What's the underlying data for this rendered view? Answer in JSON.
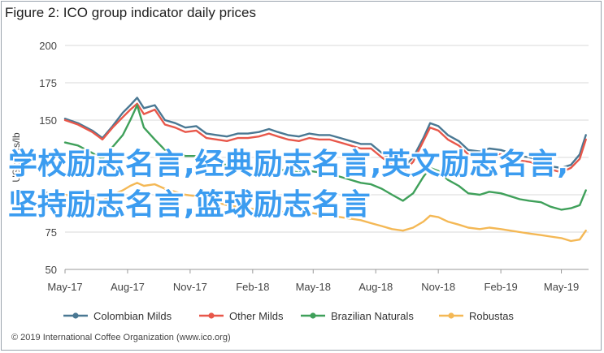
{
  "header": {
    "title": "Figure 2: ICO group indicator daily prices"
  },
  "overlay": {
    "text": "学校励志名言,经典励志名言,英文励志名言,坚持励志名言,篮球励志名言"
  },
  "footer": {
    "copyright": "© 2019 International Coffee Organization (www.ico.org)"
  },
  "chart_data": {
    "type": "line",
    "title": "Figure 2: ICO group indicator daily prices",
    "ylabel": "US cents/lb",
    "xlabel": "",
    "ylim": [
      50,
      200
    ],
    "yticks": [
      50,
      75,
      100,
      125,
      150,
      175,
      200
    ],
    "xlim": [
      "2017-05-01",
      "2019-06-10"
    ],
    "xticks": [
      "2017-05-01",
      "2017-08-01",
      "2017-11-01",
      "2018-02-01",
      "2018-05-01",
      "2018-08-01",
      "2018-11-01",
      "2019-02-01",
      "2019-05-01"
    ],
    "xtick_labels": [
      "May-17",
      "Aug-17",
      "Nov-17",
      "Feb-18",
      "May-18",
      "Aug-18",
      "Nov-18",
      "Feb-19",
      "May-19"
    ],
    "grid": true,
    "legend_position": "bottom",
    "series": [
      {
        "name": "Colombian Milds",
        "color": "#4a7893",
        "points": [
          [
            "2017-05-01",
            151
          ],
          [
            "2017-05-20",
            148
          ],
          [
            "2017-06-10",
            143
          ],
          [
            "2017-06-25",
            138
          ],
          [
            "2017-07-10",
            146
          ],
          [
            "2017-07-25",
            155
          ],
          [
            "2017-08-05",
            160
          ],
          [
            "2017-08-15",
            165
          ],
          [
            "2017-08-25",
            158
          ],
          [
            "2017-09-10",
            160
          ],
          [
            "2017-09-25",
            150
          ],
          [
            "2017-10-10",
            148
          ],
          [
            "2017-10-25",
            145
          ],
          [
            "2017-11-10",
            146
          ],
          [
            "2017-11-25",
            141
          ],
          [
            "2017-12-10",
            140
          ],
          [
            "2017-12-25",
            139
          ],
          [
            "2018-01-10",
            141
          ],
          [
            "2018-01-25",
            141
          ],
          [
            "2018-02-10",
            142
          ],
          [
            "2018-02-25",
            144
          ],
          [
            "2018-03-10",
            142
          ],
          [
            "2018-03-25",
            140
          ],
          [
            "2018-04-10",
            139
          ],
          [
            "2018-04-25",
            141
          ],
          [
            "2018-05-10",
            140
          ],
          [
            "2018-05-25",
            140
          ],
          [
            "2018-06-10",
            138
          ],
          [
            "2018-06-25",
            136
          ],
          [
            "2018-07-10",
            134
          ],
          [
            "2018-07-25",
            134
          ],
          [
            "2018-08-10",
            128
          ],
          [
            "2018-08-25",
            123
          ],
          [
            "2018-09-10",
            118
          ],
          [
            "2018-09-25",
            125
          ],
          [
            "2018-10-10",
            138
          ],
          [
            "2018-10-20",
            148
          ],
          [
            "2018-11-01",
            146
          ],
          [
            "2018-11-15",
            140
          ],
          [
            "2018-12-01",
            136
          ],
          [
            "2018-12-15",
            130
          ],
          [
            "2019-01-01",
            129
          ],
          [
            "2019-01-15",
            131
          ],
          [
            "2019-02-01",
            130
          ],
          [
            "2019-02-15",
            128
          ],
          [
            "2019-03-01",
            126
          ],
          [
            "2019-03-15",
            125
          ],
          [
            "2019-04-01",
            123
          ],
          [
            "2019-04-15",
            119
          ],
          [
            "2019-05-01",
            118
          ],
          [
            "2019-05-15",
            120
          ],
          [
            "2019-05-28",
            127
          ],
          [
            "2019-06-06",
            140
          ]
        ]
      },
      {
        "name": "Other Milds",
        "color": "#e8574a",
        "points": [
          [
            "2017-05-01",
            150
          ],
          [
            "2017-05-20",
            147
          ],
          [
            "2017-06-10",
            142
          ],
          [
            "2017-06-25",
            137
          ],
          [
            "2017-07-10",
            145
          ],
          [
            "2017-07-25",
            152
          ],
          [
            "2017-08-05",
            157
          ],
          [
            "2017-08-15",
            161
          ],
          [
            "2017-08-25",
            154
          ],
          [
            "2017-09-10",
            157
          ],
          [
            "2017-09-25",
            147
          ],
          [
            "2017-10-10",
            145
          ],
          [
            "2017-10-25",
            142
          ],
          [
            "2017-11-10",
            143
          ],
          [
            "2017-11-25",
            138
          ],
          [
            "2017-12-10",
            137
          ],
          [
            "2017-12-25",
            136
          ],
          [
            "2018-01-10",
            138
          ],
          [
            "2018-01-25",
            138
          ],
          [
            "2018-02-10",
            139
          ],
          [
            "2018-02-25",
            141
          ],
          [
            "2018-03-10",
            139
          ],
          [
            "2018-03-25",
            137
          ],
          [
            "2018-04-10",
            136
          ],
          [
            "2018-04-25",
            138
          ],
          [
            "2018-05-10",
            137
          ],
          [
            "2018-05-25",
            137
          ],
          [
            "2018-06-10",
            135
          ],
          [
            "2018-06-25",
            133
          ],
          [
            "2018-07-10",
            131
          ],
          [
            "2018-07-25",
            131
          ],
          [
            "2018-08-10",
            125
          ],
          [
            "2018-08-25",
            120
          ],
          [
            "2018-09-10",
            115
          ],
          [
            "2018-09-25",
            122
          ],
          [
            "2018-10-10",
            136
          ],
          [
            "2018-10-20",
            145
          ],
          [
            "2018-11-01",
            143
          ],
          [
            "2018-11-15",
            137
          ],
          [
            "2018-12-01",
            133
          ],
          [
            "2018-12-15",
            127
          ],
          [
            "2019-01-01",
            126
          ],
          [
            "2019-01-15",
            128
          ],
          [
            "2019-02-01",
            127
          ],
          [
            "2019-02-15",
            125
          ],
          [
            "2019-03-01",
            123
          ],
          [
            "2019-03-15",
            122
          ],
          [
            "2019-04-01",
            120
          ],
          [
            "2019-04-15",
            117
          ],
          [
            "2019-05-01",
            115
          ],
          [
            "2019-05-15",
            118
          ],
          [
            "2019-05-28",
            124
          ],
          [
            "2019-06-06",
            137
          ]
        ]
      },
      {
        "name": "Brazilian Naturals",
        "color": "#3fa05a",
        "points": [
          [
            "2017-05-01",
            135
          ],
          [
            "2017-05-20",
            133
          ],
          [
            "2017-06-10",
            128
          ],
          [
            "2017-06-25",
            124
          ],
          [
            "2017-07-10",
            132
          ],
          [
            "2017-07-25",
            140
          ],
          [
            "2017-08-05",
            150
          ],
          [
            "2017-08-15",
            160
          ],
          [
            "2017-08-25",
            145
          ],
          [
            "2017-09-10",
            137
          ],
          [
            "2017-09-25",
            130
          ],
          [
            "2017-10-10",
            128
          ],
          [
            "2017-10-25",
            126
          ],
          [
            "2017-11-10",
            126
          ],
          [
            "2017-11-25",
            122
          ],
          [
            "2017-12-10",
            121
          ],
          [
            "2017-12-25",
            120
          ],
          [
            "2018-01-10",
            121
          ],
          [
            "2018-01-25",
            120
          ],
          [
            "2018-02-10",
            118
          ],
          [
            "2018-02-25",
            118
          ],
          [
            "2018-03-10",
            117
          ],
          [
            "2018-03-25",
            116
          ],
          [
            "2018-04-10",
            115
          ],
          [
            "2018-04-25",
            116
          ],
          [
            "2018-05-10",
            115
          ],
          [
            "2018-05-25",
            114
          ],
          [
            "2018-06-10",
            112
          ],
          [
            "2018-06-25",
            110
          ],
          [
            "2018-07-10",
            108
          ],
          [
            "2018-07-25",
            107
          ],
          [
            "2018-08-10",
            104
          ],
          [
            "2018-08-25",
            100
          ],
          [
            "2018-09-10",
            96
          ],
          [
            "2018-09-25",
            101
          ],
          [
            "2018-10-10",
            112
          ],
          [
            "2018-10-20",
            118
          ],
          [
            "2018-11-01",
            116
          ],
          [
            "2018-11-15",
            110
          ],
          [
            "2018-12-01",
            106
          ],
          [
            "2018-12-15",
            101
          ],
          [
            "2019-01-01",
            100
          ],
          [
            "2019-01-15",
            102
          ],
          [
            "2019-02-01",
            101
          ],
          [
            "2019-02-15",
            99
          ],
          [
            "2019-03-01",
            97
          ],
          [
            "2019-03-15",
            96
          ],
          [
            "2019-04-01",
            95
          ],
          [
            "2019-04-15",
            92
          ],
          [
            "2019-05-01",
            90
          ],
          [
            "2019-05-15",
            91
          ],
          [
            "2019-05-28",
            93
          ],
          [
            "2019-06-06",
            103
          ]
        ]
      },
      {
        "name": "Robustas",
        "color": "#f4b855",
        "points": [
          [
            "2017-05-01",
            100
          ],
          [
            "2017-05-20",
            99
          ],
          [
            "2017-06-10",
            97
          ],
          [
            "2017-06-25",
            96
          ],
          [
            "2017-07-10",
            100
          ],
          [
            "2017-07-25",
            103
          ],
          [
            "2017-08-05",
            106
          ],
          [
            "2017-08-15",
            108
          ],
          [
            "2017-08-25",
            106
          ],
          [
            "2017-09-10",
            107
          ],
          [
            "2017-09-25",
            104
          ],
          [
            "2017-10-10",
            102
          ],
          [
            "2017-10-25",
            100
          ],
          [
            "2017-11-10",
            99
          ],
          [
            "2017-11-25",
            97
          ],
          [
            "2017-12-10",
            95
          ],
          [
            "2017-12-25",
            93
          ],
          [
            "2018-01-10",
            92
          ],
          [
            "2018-01-25",
            91
          ],
          [
            "2018-02-10",
            90
          ],
          [
            "2018-02-25",
            90
          ],
          [
            "2018-03-10",
            89
          ],
          [
            "2018-03-25",
            88
          ],
          [
            "2018-04-10",
            87
          ],
          [
            "2018-04-25",
            88
          ],
          [
            "2018-05-10",
            87
          ],
          [
            "2018-05-25",
            86
          ],
          [
            "2018-06-10",
            85
          ],
          [
            "2018-06-25",
            84
          ],
          [
            "2018-07-10",
            83
          ],
          [
            "2018-07-25",
            81
          ],
          [
            "2018-08-10",
            79
          ],
          [
            "2018-08-25",
            77
          ],
          [
            "2018-09-10",
            76
          ],
          [
            "2018-09-25",
            78
          ],
          [
            "2018-10-10",
            82
          ],
          [
            "2018-10-20",
            86
          ],
          [
            "2018-11-01",
            85
          ],
          [
            "2018-11-15",
            82
          ],
          [
            "2018-12-01",
            80
          ],
          [
            "2018-12-15",
            78
          ],
          [
            "2019-01-01",
            77
          ],
          [
            "2019-01-15",
            78
          ],
          [
            "2019-02-01",
            77
          ],
          [
            "2019-02-15",
            76
          ],
          [
            "2019-03-01",
            75
          ],
          [
            "2019-03-15",
            74
          ],
          [
            "2019-04-01",
            73
          ],
          [
            "2019-04-15",
            72
          ],
          [
            "2019-05-01",
            71
          ],
          [
            "2019-05-15",
            69
          ],
          [
            "2019-05-28",
            70
          ],
          [
            "2019-06-06",
            76
          ]
        ]
      }
    ]
  }
}
